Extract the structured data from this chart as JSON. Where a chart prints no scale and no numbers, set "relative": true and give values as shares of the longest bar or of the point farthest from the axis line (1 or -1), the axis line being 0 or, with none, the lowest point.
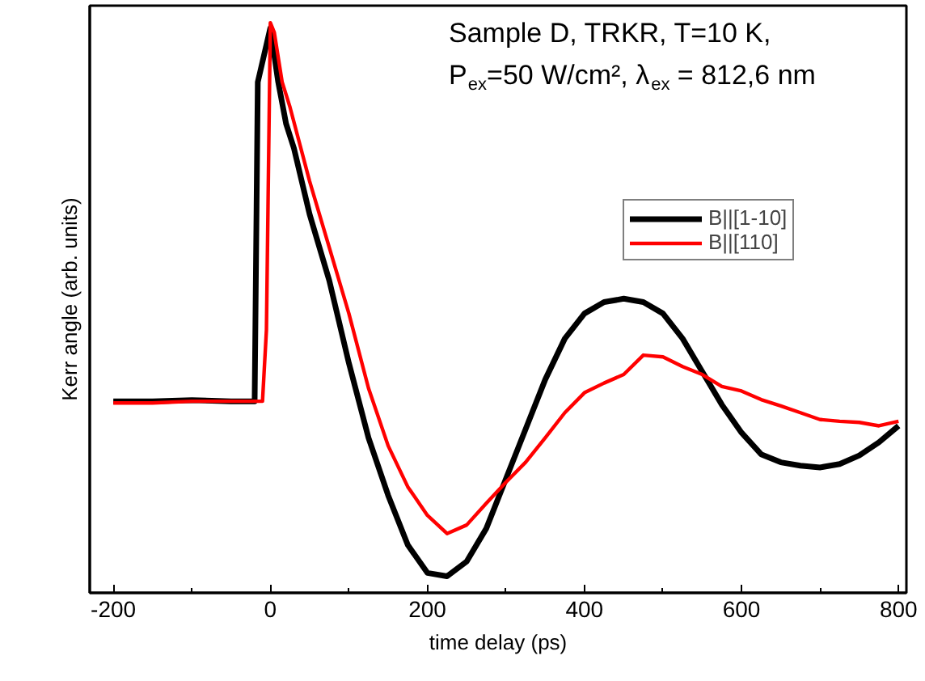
{
  "chart_data": {
    "type": "line",
    "relative": true,
    "xlabel": "time delay (ps)",
    "ylabel": "Kerr angle (arb. units)",
    "annotations": [
      "Sample D, TRKR, T=10 K,",
      "P$_{ex}$=50 W/cm², λ$_{ex}$ = 812,6 nm"
    ],
    "xlim": [
      -230,
      810
    ],
    "xticks": [
      -200,
      0,
      200,
      400,
      600,
      800
    ],
    "grid": false,
    "legend": "top right",
    "marker": "none",
    "line_style": "solid",
    "series": [
      {
        "name": "B||[1-10]",
        "color": "#000000",
        "x": [
          -200,
          -150,
          -100,
          -50,
          -20,
          -16,
          0,
          10,
          20,
          30,
          50,
          75,
          100,
          125,
          150,
          175,
          200,
          225,
          250,
          275,
          300,
          325,
          350,
          375,
          400,
          425,
          450,
          475,
          500,
          525,
          550,
          575,
          600,
          625,
          650,
          675,
          700,
          725,
          750,
          775,
          800
        ],
        "values": [
          0.336,
          0.336,
          0.338,
          0.336,
          0.336,
          0.896,
          0.991,
          0.896,
          0.823,
          0.78,
          0.664,
          0.548,
          0.403,
          0.272,
          0.171,
          0.084,
          0.035,
          0.029,
          0.055,
          0.113,
          0.2,
          0.287,
          0.374,
          0.446,
          0.49,
          0.51,
          0.516,
          0.51,
          0.49,
          0.446,
          0.388,
          0.33,
          0.281,
          0.243,
          0.229,
          0.223,
          0.22,
          0.226,
          0.241,
          0.264,
          0.293
        ]
      },
      {
        "name": "B||[110]",
        "color": "#ff0000",
        "x": [
          -200,
          -150,
          -100,
          -50,
          -10,
          -5,
          0,
          5,
          15,
          25,
          50,
          75,
          100,
          125,
          150,
          175,
          200,
          225,
          250,
          275,
          300,
          325,
          350,
          375,
          400,
          425,
          450,
          475,
          500,
          525,
          550,
          575,
          600,
          625,
          650,
          675,
          700,
          725,
          750,
          775,
          800
        ],
        "values": [
          0.333,
          0.333,
          0.336,
          0.336,
          0.336,
          0.461,
          1.0,
          0.983,
          0.896,
          0.852,
          0.722,
          0.606,
          0.49,
          0.359,
          0.258,
          0.186,
          0.136,
          0.104,
          0.119,
          0.157,
          0.194,
          0.229,
          0.272,
          0.316,
          0.351,
          0.368,
          0.383,
          0.417,
          0.414,
          0.397,
          0.383,
          0.362,
          0.354,
          0.339,
          0.328,
          0.316,
          0.304,
          0.301,
          0.299,
          0.293,
          0.301
        ]
      }
    ]
  }
}
